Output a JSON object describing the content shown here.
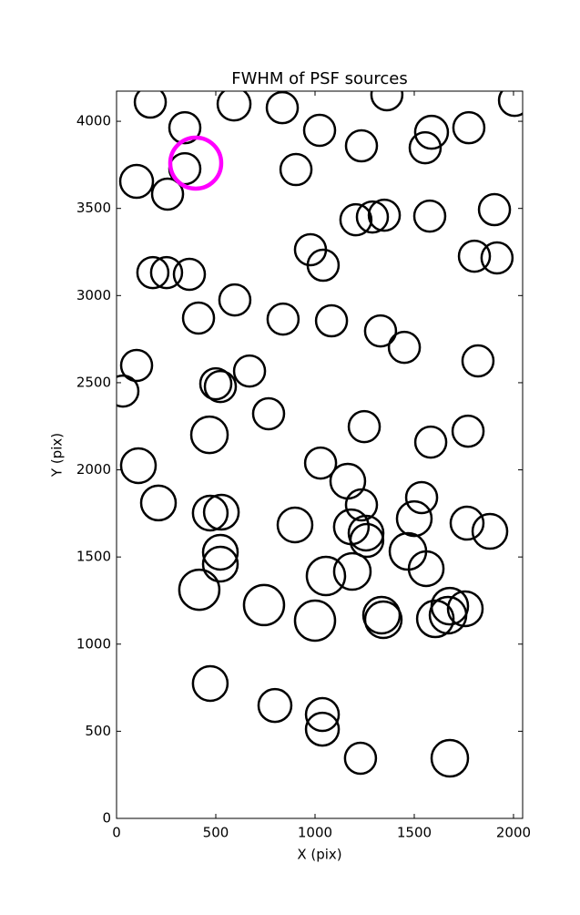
{
  "chart_data": {
    "type": "scatter",
    "title": "FWHM of PSF sources",
    "x_label": "X (pix)",
    "y_label": "Y (pix)",
    "xlim": [
      0,
      2046
    ],
    "ylim": [
      0,
      4173
    ],
    "xticks": [
      0,
      500,
      1000,
      1500,
      2000
    ],
    "yticks": [
      0,
      500,
      1000,
      1500,
      2000,
      2500,
      3000,
      3500,
      4000
    ],
    "series": [
      {
        "color": "#000000",
        "x": [
          170,
          344,
          592,
          835,
          1023,
          1362,
          1587,
          1775,
          2005,
          344,
          101,
          257,
          904,
          1234,
          1555,
          1206,
          1289,
          1349,
          1578,
          1904,
          977,
          1041,
          1803,
          1917,
          183,
          252,
          367,
          596,
          413,
          839,
          1083,
          1330,
          1450,
          101,
          1821,
          32,
          500,
          523,
          670,
          766,
          1248,
          468,
          1583,
          1771,
          110,
          1028,
          1165,
          1234,
          1537,
          211,
          472,
          528,
          1500,
          899,
          1183,
          1257,
          1261,
          1766,
          1881,
          523,
          523,
          1468,
          1560,
          1055,
          1188,
          417,
          743,
          1000,
          1335,
          1344,
          1606,
          1670,
          1679,
          1757,
          472,
          798,
          1037,
          1037,
          1229,
          1679
        ],
        "y": [
          4110,
          3963,
          4099,
          4078,
          3948,
          4152,
          3937,
          3963,
          4120,
          3728,
          3655,
          3582,
          3723,
          3859,
          3848,
          3435,
          3451,
          3461,
          3456,
          3493,
          3263,
          3174,
          3226,
          3216,
          3132,
          3132,
          3122,
          2975,
          2871,
          2865,
          2855,
          2797,
          2703,
          2599,
          2625,
          2452,
          2494,
          2478,
          2567,
          2322,
          2248,
          2201,
          2159,
          2222,
          2024,
          2039,
          1935,
          1799,
          1841,
          1810,
          1752,
          1757,
          1720,
          1684,
          1673,
          1637,
          1595,
          1694,
          1647,
          1527,
          1459,
          1532,
          1433,
          1391,
          1417,
          1312,
          1224,
          1135,
          1166,
          1140,
          1145,
          1166,
          1218,
          1203,
          774,
          648,
          596,
          512,
          345,
          345
        ],
        "sizes": [
          17,
          17,
          18,
          17,
          17,
          17,
          18,
          17,
          17,
          17,
          18,
          17,
          17,
          17,
          17,
          17,
          17,
          17,
          17,
          17,
          17,
          17,
          17,
          17,
          17,
          17,
          17,
          17,
          17,
          17,
          17,
          17,
          17,
          17,
          17,
          17,
          17,
          17,
          17,
          17,
          17,
          20,
          17,
          17,
          19,
          17,
          19,
          17,
          17,
          19,
          19,
          19,
          19,
          19,
          19,
          19,
          18,
          18,
          19,
          19,
          19,
          20,
          19,
          21,
          20,
          22,
          22,
          22,
          20,
          20,
          20,
          20,
          20,
          19,
          19,
          18,
          18,
          18,
          17,
          20
        ]
      },
      {
        "color": "#ff00ff",
        "x": [
          399
        ],
        "y": [
          3760
        ],
        "sizes": [
          28
        ]
      }
    ]
  }
}
